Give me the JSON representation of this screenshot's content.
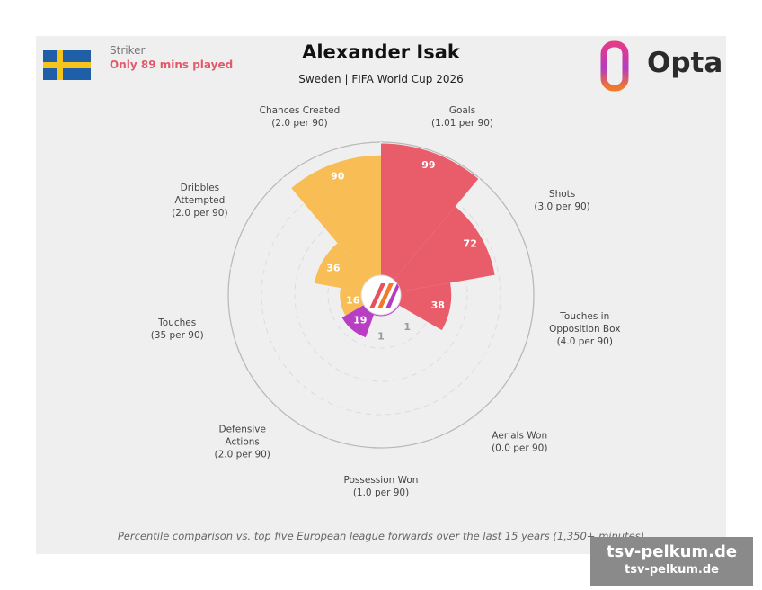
{
  "header": {
    "role": "Striker",
    "minutes_note": "Only 89 mins played",
    "title": "Alexander Isak",
    "subtitle": "Sweden | FIFA World Cup 2026",
    "brand": "Opta"
  },
  "footnote": "Percentile comparison vs. top five European league forwards over the last 15 years (1,350+ minutes)",
  "watermark": {
    "line1": "tsv-pelkum.de",
    "line2": "tsv-pelkum.de"
  },
  "colors": {
    "attacking": "#e8505f",
    "possession": "#f8b847",
    "defending": "#b32fbf",
    "flag_blue": "#1f5fa8",
    "flag_yellow": "#f7c41b"
  },
  "chart_data": {
    "type": "polar-bar",
    "rlim": [
      0,
      100
    ],
    "metrics": [
      {
        "name": "Goals",
        "rate": "(1.01 per 90)",
        "percentile": 99,
        "group": "attacking"
      },
      {
        "name": "Shots",
        "rate": "(3.0 per 90)",
        "percentile": 72,
        "group": "attacking"
      },
      {
        "name": "Touches in Opposition Box",
        "rate": "(4.0 per 90)",
        "percentile": 38,
        "group": "attacking"
      },
      {
        "name": "Aerials Won",
        "rate": "(0.0 per 90)",
        "percentile": 1,
        "group": "defending"
      },
      {
        "name": "Possession Won",
        "rate": "(1.0 per 90)",
        "percentile": 1,
        "group": "defending"
      },
      {
        "name": "Defensive Actions",
        "rate": "(2.0 per 90)",
        "percentile": 19,
        "group": "defending"
      },
      {
        "name": "Touches",
        "rate": "(35 per 90)",
        "percentile": 16,
        "group": "possession"
      },
      {
        "name": "Dribbles Attempted",
        "rate": "(2.0 per 90)",
        "percentile": 36,
        "group": "possession"
      },
      {
        "name": "Chances Created",
        "rate": "(2.0 per 90)",
        "percentile": 90,
        "group": "possession"
      }
    ]
  }
}
